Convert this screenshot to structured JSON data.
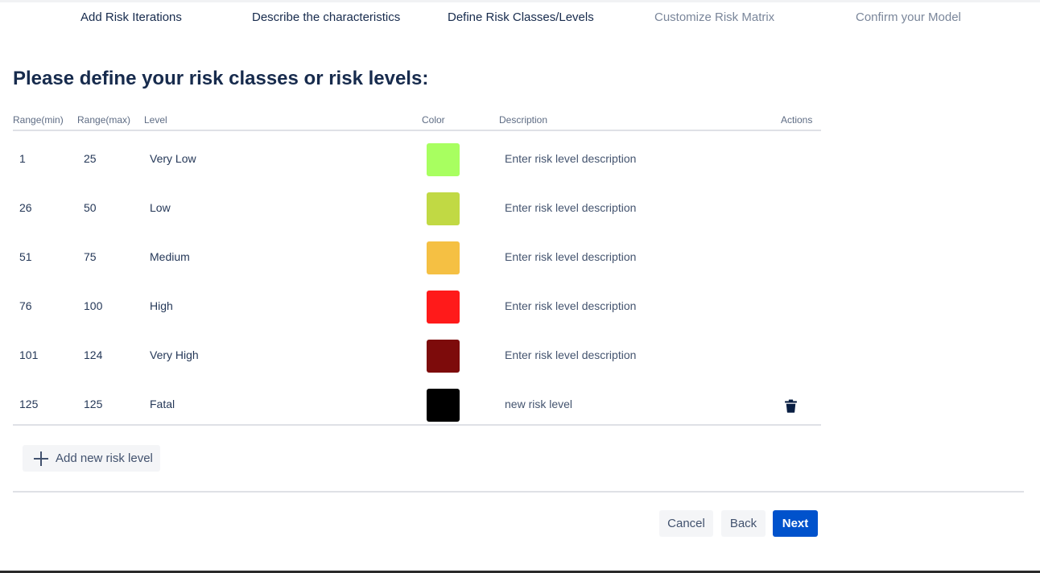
{
  "wizard": {
    "steps": [
      {
        "label": "Add Risk Iterations",
        "state": "done"
      },
      {
        "label": "Describe the characteristics",
        "state": "done"
      },
      {
        "label": "Define Risk Classes/Levels",
        "state": "current"
      },
      {
        "label": "Customize Risk Matrix",
        "state": "upcoming"
      },
      {
        "label": "Confirm your Model",
        "state": "upcoming"
      }
    ]
  },
  "page": {
    "title": "Please define your risk classes or risk levels:"
  },
  "table": {
    "headers": {
      "min": "Range(min)",
      "max": "Range(max)",
      "level": "Level",
      "color": "Color",
      "description": "Description",
      "actions": "Actions"
    },
    "rows": [
      {
        "min": "1",
        "max": "25",
        "level": "Very Low",
        "color": "#a8ff60",
        "description": "Enter risk level description",
        "deletable": false
      },
      {
        "min": "26",
        "max": "50",
        "level": "Low",
        "color": "#c1d944",
        "description": "Enter risk level description",
        "deletable": false
      },
      {
        "min": "51",
        "max": "75",
        "level": "Medium",
        "color": "#f5c043",
        "description": "Enter risk level description",
        "deletable": false
      },
      {
        "min": "76",
        "max": "100",
        "level": "High",
        "color": "#ff1a1a",
        "description": "Enter risk level description",
        "deletable": false
      },
      {
        "min": "101",
        "max": "124",
        "level": "Very High",
        "color": "#7d0b0b",
        "description": "Enter risk level description",
        "deletable": false
      },
      {
        "min": "125",
        "max": "125",
        "level": "Fatal",
        "color": "#000000",
        "description": "new risk level",
        "deletable": true
      }
    ]
  },
  "actions": {
    "add_label": "Add new risk level",
    "add_icon": "plus-icon",
    "delete_icon": "trash-icon",
    "cancel": "Cancel",
    "back": "Back",
    "next": "Next"
  },
  "theme": {
    "primary": "#0052cc",
    "text": "#172b4d",
    "muted": "#7a869a"
  }
}
